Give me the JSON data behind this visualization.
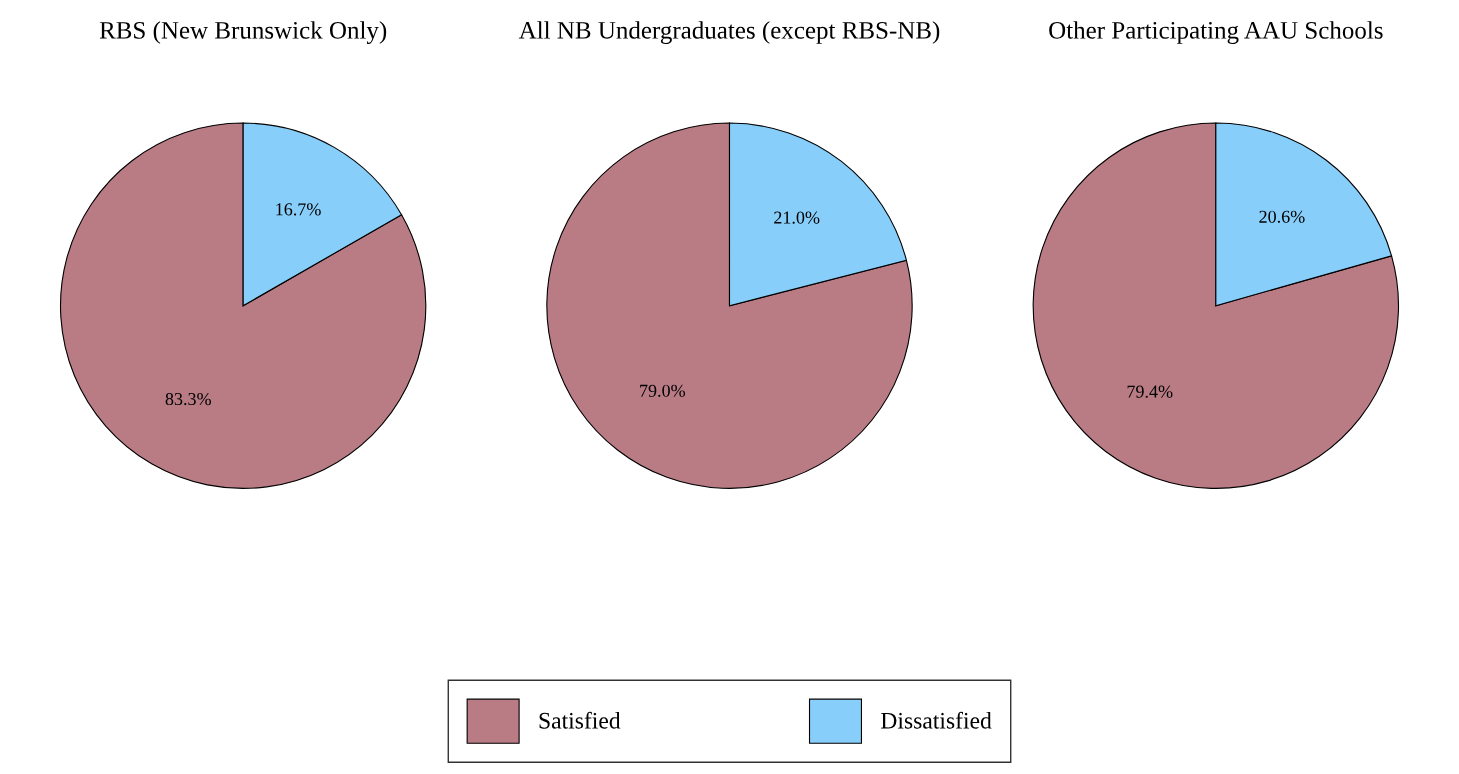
{
  "chart_data": [
    {
      "type": "pie",
      "title": "RBS (New Brunswick Only)",
      "categories": [
        "Satisfied",
        "Dissatisfied"
      ],
      "values": [
        83.3,
        16.7
      ],
      "colors": [
        "#b97c85",
        "#87cefa"
      ],
      "value_labels": [
        "83.3%",
        "16.7%"
      ],
      "legend": "bottom"
    },
    {
      "type": "pie",
      "title": "All NB Undergraduates (except RBS-NB)",
      "categories": [
        null,
        null
      ],
      "values": [
        79.0,
        21.0
      ],
      "colors": [
        "#b97c85",
        "#87cefa"
      ],
      "value_labels": [
        "79.0%",
        "21.0%"
      ]
    },
    {
      "type": "pie",
      "title": "Other Participating AAU Schools",
      "categories": [
        null,
        null
      ],
      "values": [
        79.4,
        20.6
      ],
      "colors": [
        "#b97c85",
        "#87cefa"
      ],
      "value_labels": [
        "79.4%",
        "20.6%"
      ]
    }
  ]
}
